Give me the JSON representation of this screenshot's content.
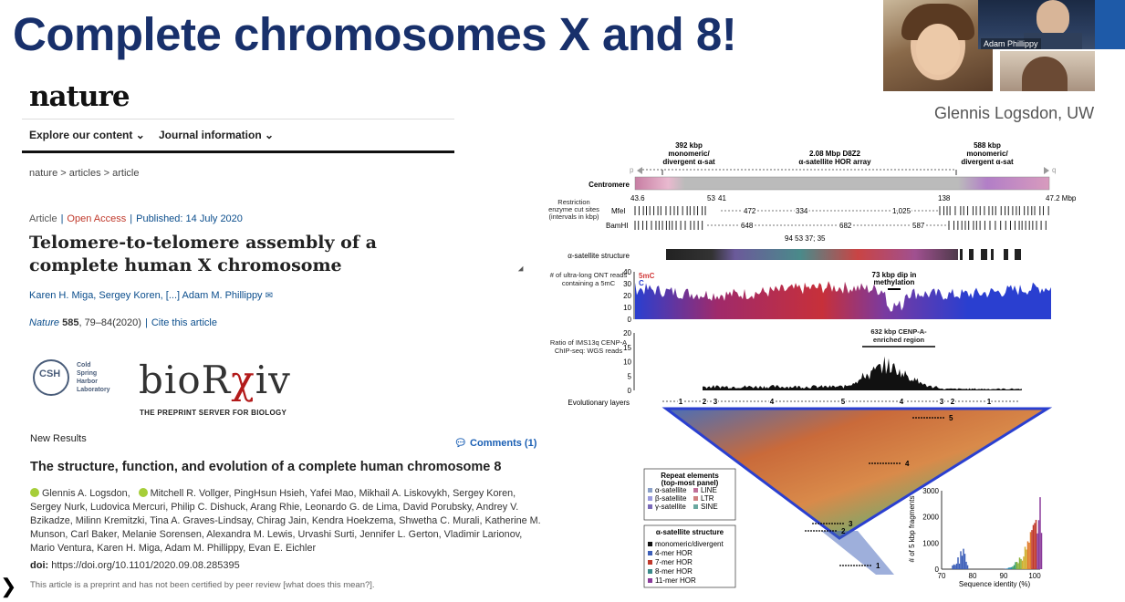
{
  "slide": {
    "title": "Complete chromosomes X and 8!",
    "credit": "Glennis Logsdon, UW"
  },
  "video": {
    "participant_name": "Adam Phillippy"
  },
  "nature_page": {
    "logo": "nature",
    "nav": [
      "Explore our content",
      "Journal information"
    ],
    "breadcrumb": "nature > articles > article",
    "article_type": "Article",
    "open_access": "Open Access",
    "published": "Published: 14 July 2020",
    "title": "Telomere-to-telomere assembly of a complete human X chromosome",
    "authors": "Karen H. Miga, Sergey Koren, [...] Adam M. Phillippy",
    "journal_name": "Nature",
    "volume": "585",
    "pages": ", 79–84(2020)",
    "cite": "Cite this article"
  },
  "biorxiv_page": {
    "csh_abbrev": "CSH",
    "csh_name_lines": [
      "Cold",
      "Spring",
      "Harbor",
      "Laboratory"
    ],
    "logo_prefix": "bioR",
    "logo_chi": "χ",
    "logo_suffix": "iv",
    "tagline": "THE PREPRINT SERVER FOR BIOLOGY",
    "section": "New Results",
    "comments": "Comments (1)",
    "title": "The structure, function, and evolution of a complete human chromosome 8",
    "authors_1": "Glennis A. Logsdon,",
    "authors_2": "Mitchell R. Vollger, PingHsun Hsieh, Yafei Mao, Mikhail A. Liskovykh, Sergey Koren, Sergey Nurk, Ludovica Mercuri, Philip C. Dishuck, Arang Rhie, Leonardo G. de Lima, David Porubsky, Andrey V. Bzikadze, Milinn Kremitzki, Tina A. Graves-Lindsay, Chirag Jain, Kendra Hoekzema, Shwetha C. Murali, Katherine M. Munson, Carl Baker, Melanie Sorensen, Alexandra M. Lewis, Urvashi Surti, Jennifer L. Gerton, Vladimir Larionov, Mario Ventura, Karen H. Miga, Adam M. Phillippy, Evan E. Eichler",
    "doi_label": "doi:",
    "doi": "https://doi.org/10.1101/2020.09.08.285395",
    "disclaimer": "This article is a preprint and has not been certified by peer review [what does this mean?]."
  },
  "figure": {
    "region_left": "392 kbp",
    "region_left_sub1": "monomeric/",
    "region_left_sub2": "divergent α-sat",
    "region_mid": "2.08 Mbp D8Z2",
    "region_mid_sub": "α-satellite HOR array",
    "region_right": "588 kbp",
    "region_right_sub1": "monomeric/",
    "region_right_sub2": "divergent α-sat",
    "p_arm": "p",
    "q_arm": "q",
    "centromere_label": "Centromere",
    "coord_start": "43.6",
    "coord_end": "47.2 Mbp",
    "coord_53": "53",
    "coord_41": "41",
    "coord_138": "138",
    "restriction_label": "Restriction enzyme cut sites (intervals in kbp)",
    "mfei": "MfeI",
    "bamhi": "BamHI",
    "mfei_vals": [
      "472",
      "334",
      "1,025"
    ],
    "bamhi_vals": [
      "648",
      "682",
      "587"
    ],
    "bamhi_small": "94 53 37; 35",
    "alpha_structure_label": "α-satellite structure",
    "ont_label": "# of ultra-long ONT reads containing a 5mC",
    "ont_5mc": "5mC",
    "ont_c": "C",
    "ont_ticks": [
      "40",
      "30",
      "20",
      "10",
      "0"
    ],
    "dip_label": "73 kbp dip in methylation",
    "cenpa_label": "Ratio of IMS13q CENP-A ChIP-seq: WGS reads",
    "cenpa_ticks": [
      "20",
      "15",
      "10",
      "5",
      "0"
    ],
    "cenpa_region": "632 kbp CENP-A-enriched region",
    "evo_label": "Evolutionary layers",
    "evo_layers": [
      "1",
      "2",
      "3",
      "4",
      "5",
      "4",
      "3",
      "2",
      "1"
    ],
    "arrow_labels": [
      "5",
      "4",
      "3",
      "2",
      "1"
    ],
    "repeat_title": "Repeat elements (top-most panel)",
    "repeat_items": [
      "α-satellite",
      "β-satellite",
      "γ-satellite",
      "LINE",
      "LTR",
      "SINE"
    ],
    "alpha_title": "α-satellite structure",
    "alpha_items": [
      "monomeric/divergent",
      "4-mer HOR",
      "7-mer HOR",
      "8-mer HOR",
      "11-mer HOR"
    ],
    "hist_ylabel": "# of 5 kbp fragments",
    "hist_xlabel": "Sequence identity (%)",
    "hist_yticks": [
      "3000",
      "2000",
      "1000",
      "0"
    ],
    "hist_xticks": [
      "70",
      "80",
      "90",
      "100"
    ],
    "colors": {
      "methylated": "#d23a3a",
      "unmethylated": "#2a3fd0",
      "heat_hot": "#e2572b",
      "heat_cool": "#3d5fb8"
    }
  }
}
